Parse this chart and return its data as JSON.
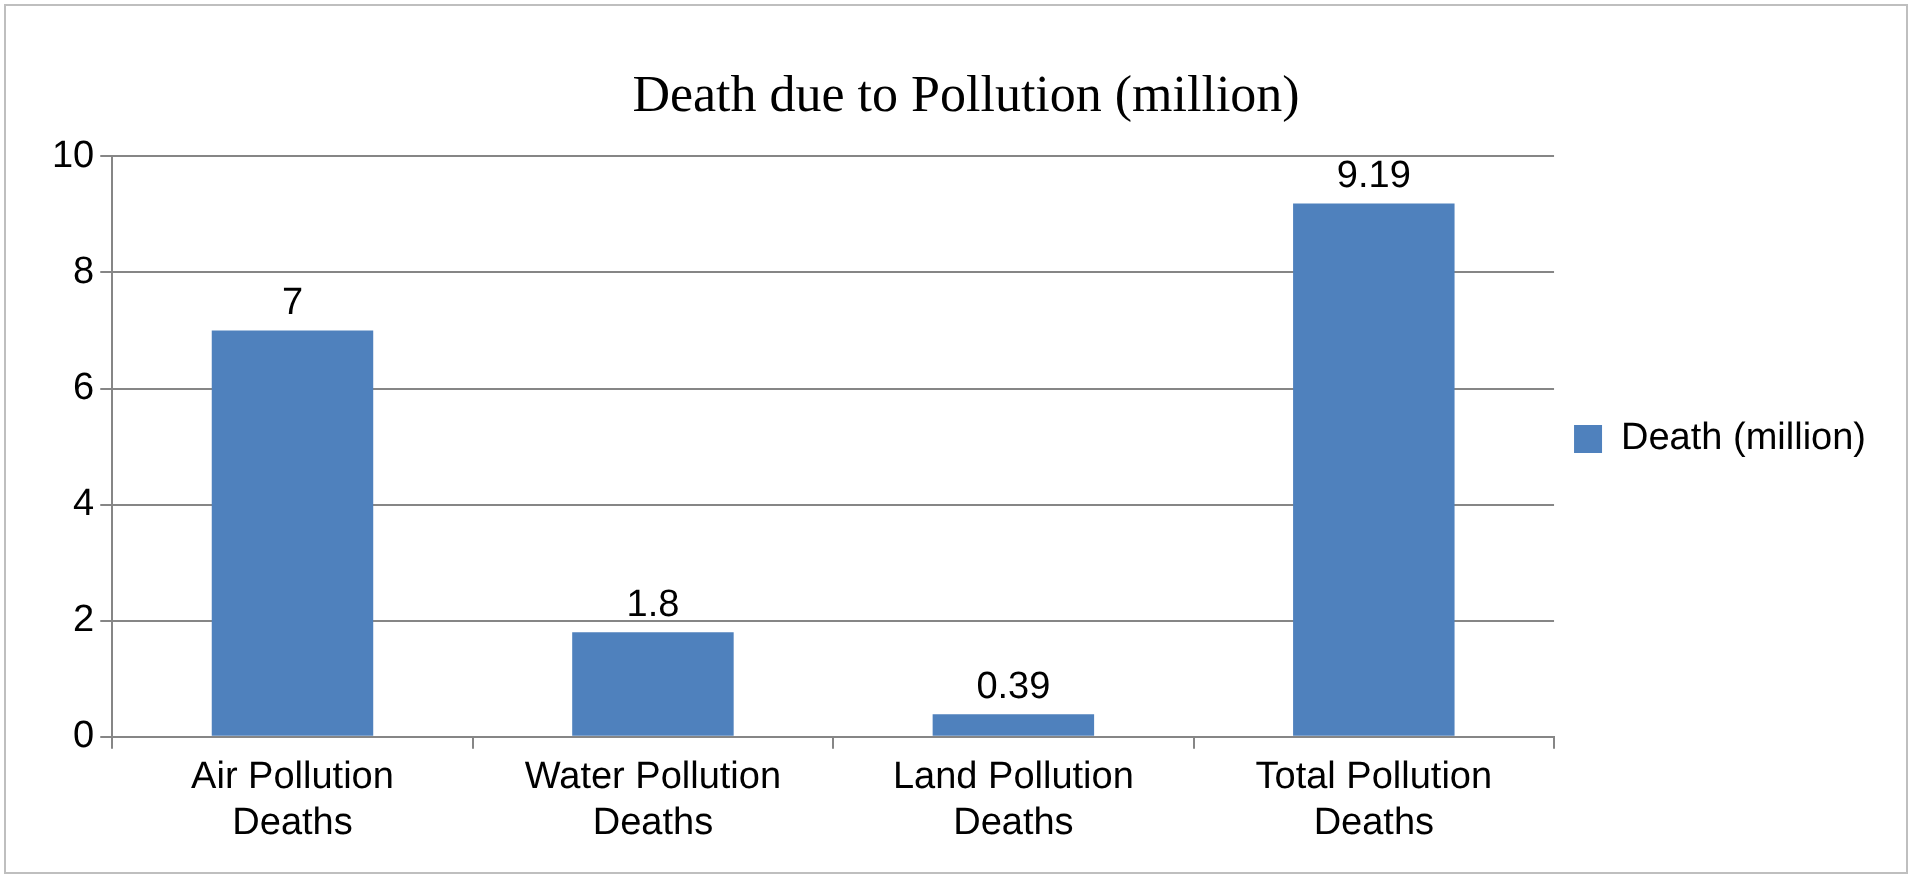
{
  "chart_data": {
    "type": "bar",
    "title": "Death due to Pollution (million)",
    "categories": [
      "Air Pollution Deaths",
      "Water Pollution Deaths",
      "Land Pollution Deaths",
      "Total Pollution Deaths"
    ],
    "series": [
      {
        "name": "Death (million)",
        "color": "#4f81bd",
        "values": [
          7,
          1.8,
          0.39,
          9.19
        ]
      }
    ],
    "ylim": [
      0,
      10
    ],
    "yticks": [
      0,
      2,
      4,
      6,
      8,
      10
    ],
    "grid": "y",
    "legend": "right",
    "data_labels": true
  }
}
